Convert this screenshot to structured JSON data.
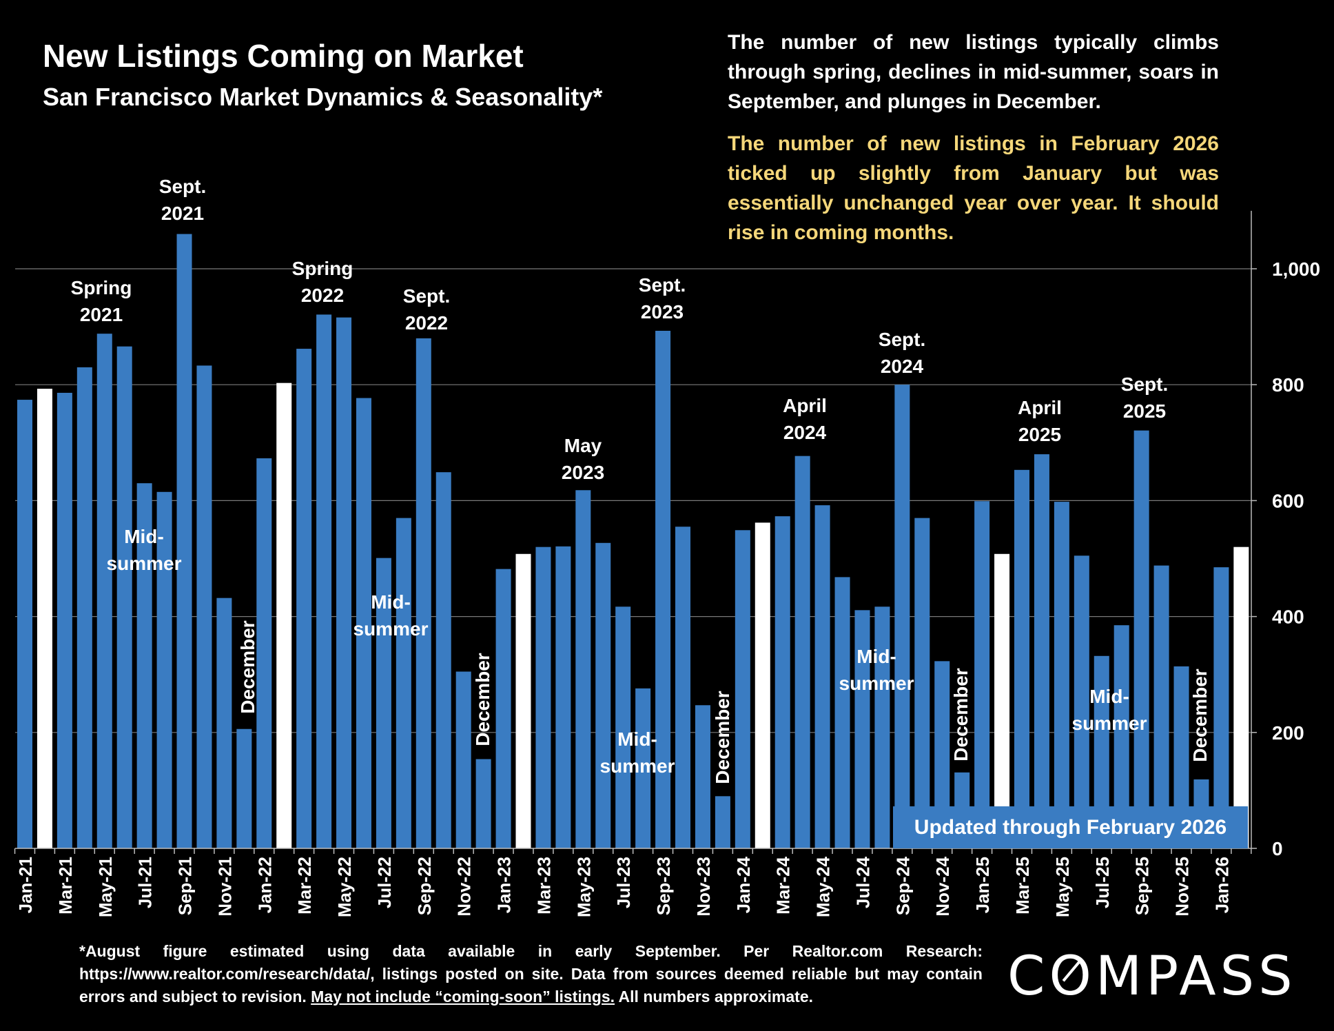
{
  "header": {
    "title": "New Listings Coming on Market",
    "subtitle": "San Francisco Market Dynamics & Seasonality*"
  },
  "notes": {
    "general": "The number of new listings typically climbs through spring, declines in mid-summer, soars in September, and plunges in December.",
    "highlight": "The number of new listings in February 2026 ticked up slightly from January but was essentially unchanged year over year. It should rise in coming months."
  },
  "updated_label": "Updated through February 2026",
  "footer": {
    "text_before": "*August figure estimated using data available in early September. Per Realtor.com Research: https://www.realtor.com/research/data/, listings posted on site. Data from sources deemed reliable but may contain errors and subject to revision. ",
    "underlined": "May not include “coming-soon” listings.",
    "text_after": " All numbers approximate."
  },
  "logo": "COMPASS",
  "colors": {
    "bar": "#3a7cc2",
    "highlight_bar": "#ffffff",
    "background": "#000000",
    "highlight_text": "#f5d77a"
  },
  "annotations": [
    {
      "text": "Spring\n2021",
      "rotated": false
    },
    {
      "text": "Sept.\n2021",
      "rotated": false
    },
    {
      "text": "Mid-\nsummer",
      "rotated": false
    },
    {
      "text": "December",
      "rotated": true
    },
    {
      "text": "Spring\n2022",
      "rotated": false
    },
    {
      "text": "Sept.\n2022",
      "rotated": false
    },
    {
      "text": "Mid-\nsummer",
      "rotated": false
    },
    {
      "text": "December",
      "rotated": true
    },
    {
      "text": "May\n2023",
      "rotated": false
    },
    {
      "text": "Sept.\n2023",
      "rotated": false
    },
    {
      "text": "Mid-\nsummer",
      "rotated": false
    },
    {
      "text": "December",
      "rotated": true
    },
    {
      "text": "April\n2024",
      "rotated": false
    },
    {
      "text": "Sept.\n2024",
      "rotated": false
    },
    {
      "text": "Mid-\nsummer",
      "rotated": false
    },
    {
      "text": "December",
      "rotated": true
    },
    {
      "text": "April\n2025",
      "rotated": false
    },
    {
      "text": "Sept.\n2025",
      "rotated": false
    },
    {
      "text": "Mid-\nsummer",
      "rotated": false
    },
    {
      "text": "December",
      "rotated": true
    }
  ],
  "chart_data": {
    "type": "bar",
    "title": "New Listings Coming on Market",
    "xlabel": "",
    "ylabel": "",
    "ylim": [
      0,
      1100
    ],
    "yticks": [
      0,
      200,
      400,
      600,
      800,
      1000
    ],
    "ytick_labels": [
      "0",
      "200",
      "400",
      "600",
      "800",
      "1,000"
    ],
    "y_axis_side": "right",
    "grid": "horizontal",
    "categories": [
      "Jan-21",
      "Feb-21",
      "Mar-21",
      "Apr-21",
      "May-21",
      "Jun-21",
      "Jul-21",
      "Aug-21",
      "Sep-21",
      "Oct-21",
      "Nov-21",
      "Dec-21",
      "Jan-22",
      "Feb-22",
      "Mar-22",
      "Apr-22",
      "May-22",
      "Jun-22",
      "Jul-22",
      "Aug-22",
      "Sep-22",
      "Oct-22",
      "Nov-22",
      "Dec-22",
      "Jan-23",
      "Feb-23",
      "Mar-23",
      "Apr-23",
      "May-23",
      "Jun-23",
      "Jul-23",
      "Aug-23",
      "Sep-23",
      "Oct-23",
      "Nov-23",
      "Dec-23",
      "Jan-24",
      "Feb-24",
      "Mar-24",
      "Apr-24",
      "May-24",
      "Jun-24",
      "Jul-24",
      "Aug-24",
      "Sep-24",
      "Oct-24",
      "Nov-24",
      "Dec-24",
      "Jan-25",
      "Feb-25",
      "Mar-25",
      "Apr-25",
      "May-25",
      "Jun-25",
      "Jul-25",
      "Aug-25",
      "Sep-25",
      "Oct-25",
      "Nov-25",
      "Dec-25",
      "Jan-26",
      "Feb-26"
    ],
    "xtick_labels": [
      "Jan-21",
      "Mar-21",
      "May-21",
      "Jul-21",
      "Sep-21",
      "Nov-21",
      "Jan-22",
      "Mar-22",
      "May-22",
      "Jul-22",
      "Sep-22",
      "Nov-22",
      "Jan-23",
      "Mar-23",
      "May-23",
      "Jul-23",
      "Sep-23",
      "Nov-23",
      "Jan-24",
      "Mar-24",
      "May-24",
      "Jul-24",
      "Sep-24",
      "Nov-24",
      "Jan-25",
      "Mar-25",
      "May-25",
      "Jul-25",
      "Sep-25",
      "Nov-25",
      "Jan-26"
    ],
    "values": [
      774,
      793,
      786,
      830,
      888,
      866,
      630,
      615,
      1060,
      833,
      432,
      206,
      673,
      803,
      862,
      921,
      916,
      777,
      501,
      570,
      880,
      649,
      305,
      154,
      482,
      508,
      520,
      521,
      618,
      527,
      417,
      276,
      893,
      555,
      247,
      90,
      549,
      562,
      573,
      677,
      592,
      468,
      411,
      417,
      800,
      570,
      323,
      131,
      599,
      508,
      653,
      680,
      598,
      505,
      332,
      385,
      721,
      488,
      314,
      119,
      485,
      520
    ],
    "highlighted_categories": [
      "Feb-21",
      "Feb-22",
      "Feb-23",
      "Feb-24",
      "Feb-25",
      "Feb-26"
    ]
  }
}
